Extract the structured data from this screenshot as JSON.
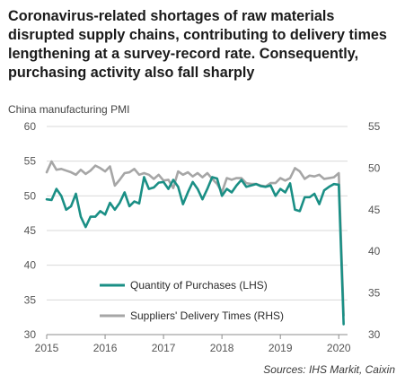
{
  "chart_data": {
    "type": "line",
    "title": "Coronavirus-related shortages of raw materials disrupted supply chains, contributing to delivery times lengthening at a survey-record rate. Consequently, purchasing activity also fall sharply",
    "ylabel_left": "China manufacturing PMI",
    "xlabel": "",
    "ylim_left": [
      30,
      60
    ],
    "ylim_right": [
      30,
      55
    ],
    "yticks_left": [
      30,
      35,
      40,
      45,
      50,
      55,
      60
    ],
    "yticks_right": [
      30,
      35,
      40,
      45,
      50,
      55
    ],
    "xlim": [
      2015.0,
      2020.15
    ],
    "xticks": [
      2015,
      2016,
      2017,
      2018,
      2019,
      2020
    ],
    "xtick_labels": [
      "2015",
      "2016",
      "2017",
      "2018",
      "2019",
      "2020"
    ],
    "grid": true,
    "legend_position": "bottom-center",
    "source": "Sources: IHS Markit, Caixin",
    "series": [
      {
        "name": "Quantity of Purchases (LHS)",
        "axis": "left",
        "color": "#1a8f85",
        "x": [
          2015.0,
          2015.0833,
          2015.1667,
          2015.25,
          2015.3333,
          2015.4167,
          2015.5,
          2015.5833,
          2015.6667,
          2015.75,
          2015.8333,
          2015.9167,
          2016.0,
          2016.0833,
          2016.1667,
          2016.25,
          2016.3333,
          2016.4167,
          2016.5,
          2016.5833,
          2016.6667,
          2016.75,
          2016.8333,
          2016.9167,
          2017.0,
          2017.0833,
          2017.1667,
          2017.25,
          2017.3333,
          2017.4167,
          2017.5,
          2017.5833,
          2017.6667,
          2017.75,
          2017.8333,
          2017.9167,
          2018.0,
          2018.0833,
          2018.1667,
          2018.25,
          2018.3333,
          2018.4167,
          2018.5,
          2018.5833,
          2018.6667,
          2018.75,
          2018.8333,
          2018.9167,
          2019.0,
          2019.0833,
          2019.1667,
          2019.25,
          2019.3333,
          2019.4167,
          2019.5,
          2019.5833,
          2019.6667,
          2019.75,
          2019.8333,
          2019.9167,
          2020.0,
          2020.0833
        ],
        "values": [
          49.5,
          49.4,
          51.0,
          50.0,
          48.0,
          48.5,
          50.3,
          47.0,
          45.5,
          47.0,
          47.0,
          47.8,
          47.3,
          49.0,
          48.0,
          49.0,
          50.5,
          48.5,
          49.2,
          48.9,
          52.7,
          51.0,
          51.2,
          51.9,
          52.0,
          51.0,
          52.3,
          51.3,
          48.8,
          50.5,
          52.0,
          51.0,
          49.5,
          51.0,
          52.7,
          52.5,
          50.0,
          51.0,
          50.5,
          51.5,
          52.3,
          51.3,
          51.5,
          51.7,
          51.4,
          51.3,
          51.5,
          50.0,
          51.0,
          50.5,
          51.8,
          48.0,
          47.8,
          49.8,
          49.8,
          50.3,
          48.8,
          50.8,
          51.3,
          51.7,
          51.6,
          31.5
        ]
      },
      {
        "name": "Suppliers' Delivery Times (RHS)",
        "axis": "right",
        "color": "#a6a6a6",
        "x": [
          2015.0,
          2015.0833,
          2015.1667,
          2015.25,
          2015.3333,
          2015.4167,
          2015.5,
          2015.5833,
          2015.6667,
          2015.75,
          2015.8333,
          2015.9167,
          2016.0,
          2016.0833,
          2016.1667,
          2016.25,
          2016.3333,
          2016.4167,
          2016.5,
          2016.5833,
          2016.6667,
          2016.75,
          2016.8333,
          2016.9167,
          2017.0,
          2017.0833,
          2017.1667,
          2017.25,
          2017.3333,
          2017.4167,
          2017.5,
          2017.5833,
          2017.6667,
          2017.75,
          2017.8333,
          2017.9167,
          2018.0,
          2018.0833,
          2018.1667,
          2018.25,
          2018.3333,
          2018.4167,
          2018.5,
          2018.5833,
          2018.6667,
          2018.75,
          2018.8333,
          2018.9167,
          2019.0,
          2019.0833,
          2019.1667,
          2019.25,
          2019.3333,
          2019.4167,
          2019.5,
          2019.5833,
          2019.6667,
          2019.75,
          2019.8333,
          2019.9167,
          2020.0,
          2020.0833
        ],
        "values": [
          49.5,
          50.8,
          49.8,
          49.9,
          49.7,
          49.5,
          49.2,
          49.8,
          49.3,
          49.7,
          50.3,
          50.0,
          49.6,
          50.2,
          47.9,
          48.6,
          49.4,
          49.5,
          49.9,
          49.2,
          49.4,
          49.2,
          48.7,
          49.2,
          48.5,
          48.6,
          47.6,
          49.6,
          49.2,
          49.5,
          49.0,
          49.4,
          48.9,
          49.4,
          48.7,
          48.1,
          47.1,
          48.8,
          48.6,
          48.8,
          48.8,
          48.2,
          48.1,
          48.1,
          47.9,
          47.8,
          48.2,
          48.2,
          48.8,
          48.5,
          48.8,
          50.0,
          49.6,
          48.7,
          49.1,
          49.0,
          49.2,
          48.7,
          48.8,
          48.9,
          49.4,
          32.3
        ]
      }
    ]
  }
}
